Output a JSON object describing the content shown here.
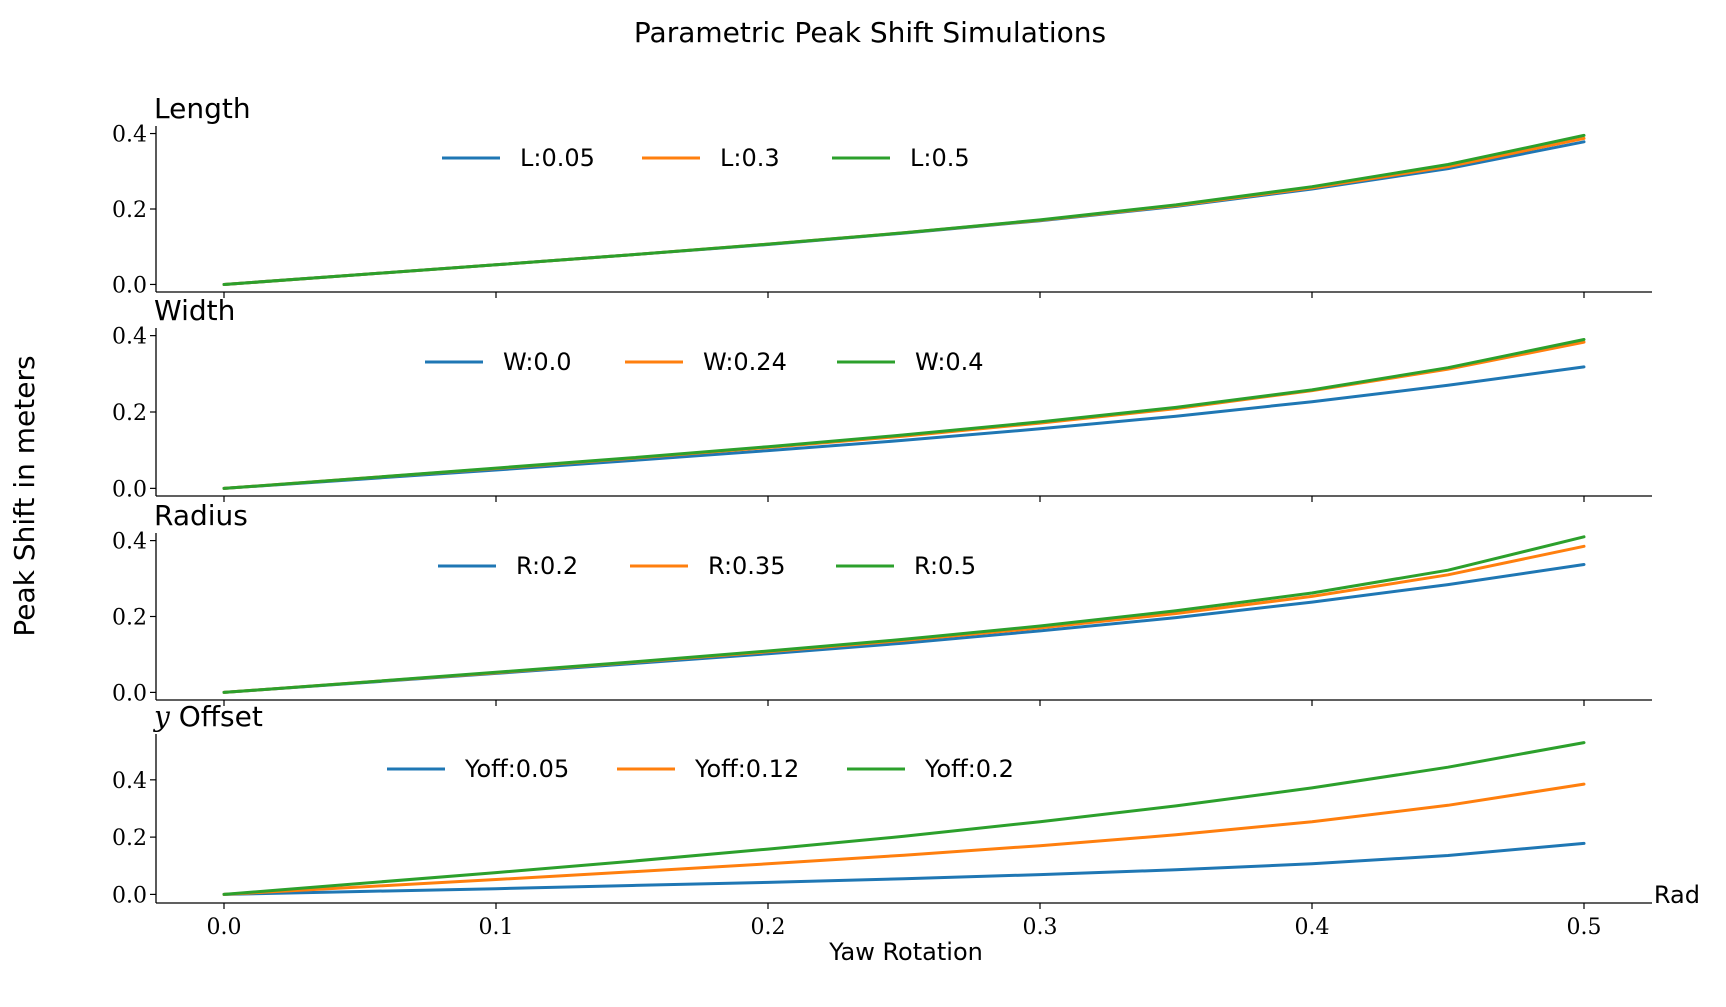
{
  "figure": {
    "title": "Parametric Peak Shift Simulations",
    "ylabel": "Peak Shift in meters",
    "xlabel": "Yaw Rotation",
    "x_unit": "Rad"
  },
  "colors": {
    "blue": "#1f77b4",
    "orange": "#ff7f0e",
    "green": "#2ca02c",
    "axis": "#000000",
    "background": "#ffffff"
  },
  "chart_data": [
    {
      "type": "line",
      "title": "Length",
      "xlim": [
        -0.025,
        0.525
      ],
      "ylim": [
        -0.02,
        0.42
      ],
      "xticks": [
        0.0,
        0.1,
        0.2,
        0.3,
        0.4,
        0.5
      ],
      "yticks": [
        0.0,
        0.2,
        0.4
      ],
      "grid": false,
      "legend": "top-center",
      "x": [
        0.0,
        0.05,
        0.1,
        0.15,
        0.2,
        0.25,
        0.3,
        0.35,
        0.4,
        0.45,
        0.5
      ],
      "series": [
        {
          "name": "L:0.05",
          "color": "#1f77b4",
          "values": [
            0.0,
            0.026,
            0.052,
            0.079,
            0.106,
            0.136,
            0.169,
            0.207,
            0.253,
            0.307,
            0.378
          ]
        },
        {
          "name": "L:0.3",
          "color": "#ff7f0e",
          "values": [
            0.0,
            0.026,
            0.052,
            0.079,
            0.107,
            0.137,
            0.17,
            0.209,
            0.256,
            0.312,
            0.387
          ]
        },
        {
          "name": "L:0.5",
          "color": "#2ca02c",
          "values": [
            0.0,
            0.026,
            0.052,
            0.079,
            0.107,
            0.137,
            0.171,
            0.211,
            0.259,
            0.318,
            0.395
          ]
        }
      ]
    },
    {
      "type": "line",
      "title": "Width",
      "xlim": [
        -0.025,
        0.525
      ],
      "ylim": [
        -0.02,
        0.42
      ],
      "xticks": [
        0.0,
        0.1,
        0.2,
        0.3,
        0.4,
        0.5
      ],
      "yticks": [
        0.0,
        0.2,
        0.4
      ],
      "grid": false,
      "legend": "top-center",
      "x": [
        0.0,
        0.05,
        0.1,
        0.15,
        0.2,
        0.25,
        0.3,
        0.35,
        0.4,
        0.45,
        0.5
      ],
      "series": [
        {
          "name": "W:0.0",
          "color": "#1f77b4",
          "values": [
            0.0,
            0.024,
            0.048,
            0.073,
            0.099,
            0.126,
            0.156,
            0.189,
            0.227,
            0.27,
            0.318
          ]
        },
        {
          "name": "W:0.24",
          "color": "#ff7f0e",
          "values": [
            0.0,
            0.026,
            0.052,
            0.079,
            0.107,
            0.137,
            0.171,
            0.209,
            0.256,
            0.312,
            0.383
          ]
        },
        {
          "name": "W:0.4",
          "color": "#2ca02c",
          "values": [
            0.0,
            0.026,
            0.053,
            0.08,
            0.109,
            0.14,
            0.174,
            0.212,
            0.258,
            0.316,
            0.39
          ]
        }
      ]
    },
    {
      "type": "line",
      "title": "Radius",
      "xlim": [
        -0.025,
        0.525
      ],
      "ylim": [
        -0.02,
        0.42
      ],
      "xticks": [
        0.0,
        0.1,
        0.2,
        0.3,
        0.4,
        0.5
      ],
      "yticks": [
        0.0,
        0.2,
        0.4
      ],
      "grid": false,
      "legend": "top-center",
      "x": [
        0.0,
        0.05,
        0.1,
        0.15,
        0.2,
        0.25,
        0.3,
        0.35,
        0.4,
        0.45,
        0.5
      ],
      "series": [
        {
          "name": "R:0.2",
          "color": "#1f77b4",
          "values": [
            0.0,
            0.025,
            0.05,
            0.076,
            0.102,
            0.13,
            0.162,
            0.197,
            0.238,
            0.284,
            0.337
          ]
        },
        {
          "name": "R:0.35",
          "color": "#ff7f0e",
          "values": [
            0.0,
            0.026,
            0.052,
            0.079,
            0.107,
            0.137,
            0.17,
            0.208,
            0.253,
            0.31,
            0.385
          ]
        },
        {
          "name": "R:0.5",
          "color": "#2ca02c",
          "values": [
            0.0,
            0.026,
            0.053,
            0.08,
            0.109,
            0.14,
            0.175,
            0.215,
            0.262,
            0.322,
            0.41
          ]
        }
      ]
    },
    {
      "type": "line",
      "title": "Offset",
      "title_prefix": "y",
      "xlim": [
        -0.025,
        0.525
      ],
      "ylim": [
        -0.03,
        0.56
      ],
      "xticks": [
        0.0,
        0.1,
        0.2,
        0.3,
        0.4,
        0.5
      ],
      "yticks": [
        0.0,
        0.2,
        0.4
      ],
      "grid": false,
      "legend": "top-center",
      "x": [
        0.0,
        0.05,
        0.1,
        0.15,
        0.2,
        0.25,
        0.3,
        0.35,
        0.4,
        0.45,
        0.5
      ],
      "series": [
        {
          "name": "Yoff:0.05",
          "color": "#1f77b4",
          "values": [
            0.0,
            0.01,
            0.02,
            0.031,
            0.042,
            0.055,
            0.069,
            0.086,
            0.107,
            0.136,
            0.178
          ]
        },
        {
          "name": "Yoff:0.12",
          "color": "#ff7f0e",
          "values": [
            0.0,
            0.026,
            0.052,
            0.079,
            0.107,
            0.137,
            0.17,
            0.208,
            0.254,
            0.311,
            0.385
          ]
        },
        {
          "name": "Yoff:0.2",
          "color": "#2ca02c",
          "values": [
            0.0,
            0.038,
            0.076,
            0.116,
            0.158,
            0.203,
            0.254,
            0.309,
            0.372,
            0.444,
            0.53
          ]
        }
      ]
    }
  ]
}
